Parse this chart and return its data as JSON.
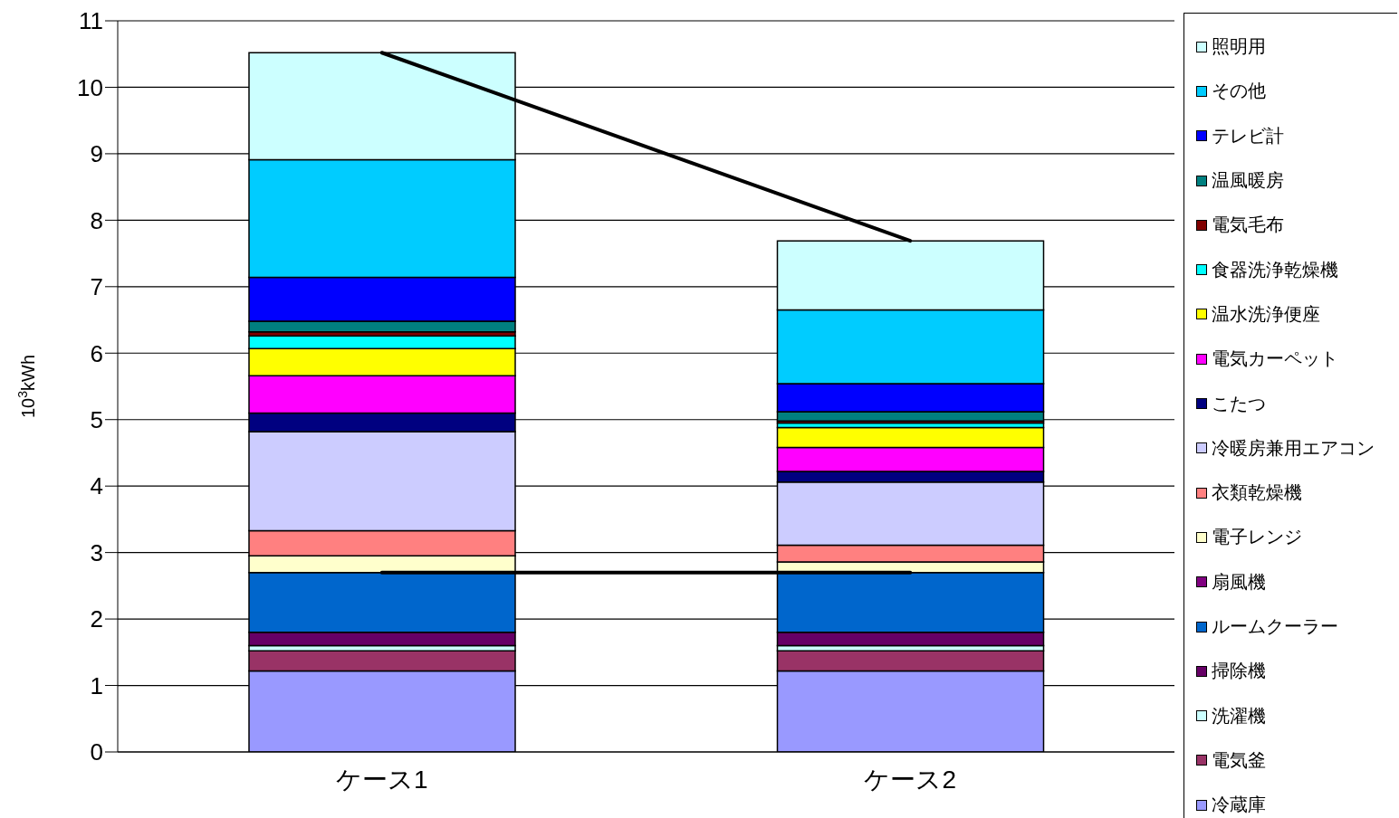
{
  "chart_data": {
    "type": "bar",
    "stacked": true,
    "ylabel": "10$^{3}$kWh",
    "categories": [
      "ケース1",
      "ケース2"
    ],
    "ylim": [
      0,
      11
    ],
    "yticks": [
      0,
      1,
      2,
      3,
      4,
      5,
      6,
      7,
      8,
      9,
      10,
      11
    ],
    "grid": "y",
    "legend": "right",
    "series": [
      {
        "name": "冷蔵庫",
        "color": "#9999ff",
        "values": [
          1.22,
          1.22
        ]
      },
      {
        "name": "電気釜",
        "color": "#993366",
        "values": [
          0.3,
          0.3
        ]
      },
      {
        "name": "洗濯機",
        "color": "#ccffff",
        "values": [
          0.08,
          0.08
        ]
      },
      {
        "name": "掃除機",
        "color": "#660066",
        "values": [
          0.2,
          0.2
        ]
      },
      {
        "name": "ルームクーラー",
        "color": "#0066cc",
        "values": [
          0.9,
          0.9
        ]
      },
      {
        "name": "扇風機",
        "color": "#800080",
        "values": [
          0,
          0
        ]
      },
      {
        "name": "電子レンジ",
        "color": "#ffffcc",
        "values": [
          0.25,
          0.16
        ]
      },
      {
        "name": "衣類乾燥機",
        "color": "#ff8080",
        "values": [
          0.38,
          0.25
        ]
      },
      {
        "name": "冷暖房兼用エアコン",
        "color": "#ccccff",
        "values": [
          1.49,
          0.95
        ]
      },
      {
        "name": "こたつ",
        "color": "#000080",
        "values": [
          0.28,
          0.16
        ]
      },
      {
        "name": "電気カーペット",
        "color": "#ff00ff",
        "values": [
          0.56,
          0.36
        ]
      },
      {
        "name": "温水洗浄便座",
        "color": "#ffff00",
        "values": [
          0.41,
          0.3
        ]
      },
      {
        "name": "食器洗浄乾燥機",
        "color": "#00ffff",
        "values": [
          0.19,
          0.07
        ]
      },
      {
        "name": "電気毛布",
        "color": "#800000",
        "values": [
          0.06,
          0.03
        ]
      },
      {
        "name": "温風暖房",
        "color": "#008080",
        "values": [
          0.16,
          0.14
        ]
      },
      {
        "name": "テレビ計",
        "color": "#0000ff",
        "values": [
          0.66,
          0.42
        ]
      },
      {
        "name": "その他",
        "color": "#00ccff",
        "values": [
          1.77,
          1.11
        ]
      },
      {
        "name": "照明用",
        "color": "#ccffff",
        "values": [
          1.61,
          1.04
        ]
      },
      {
        "type": "line",
        "color": "#000000",
        "values": [
          10.52,
          7.69
        ]
      },
      {
        "type": "line",
        "color": "#000000",
        "values": [
          2.7,
          2.7
        ]
      }
    ]
  }
}
